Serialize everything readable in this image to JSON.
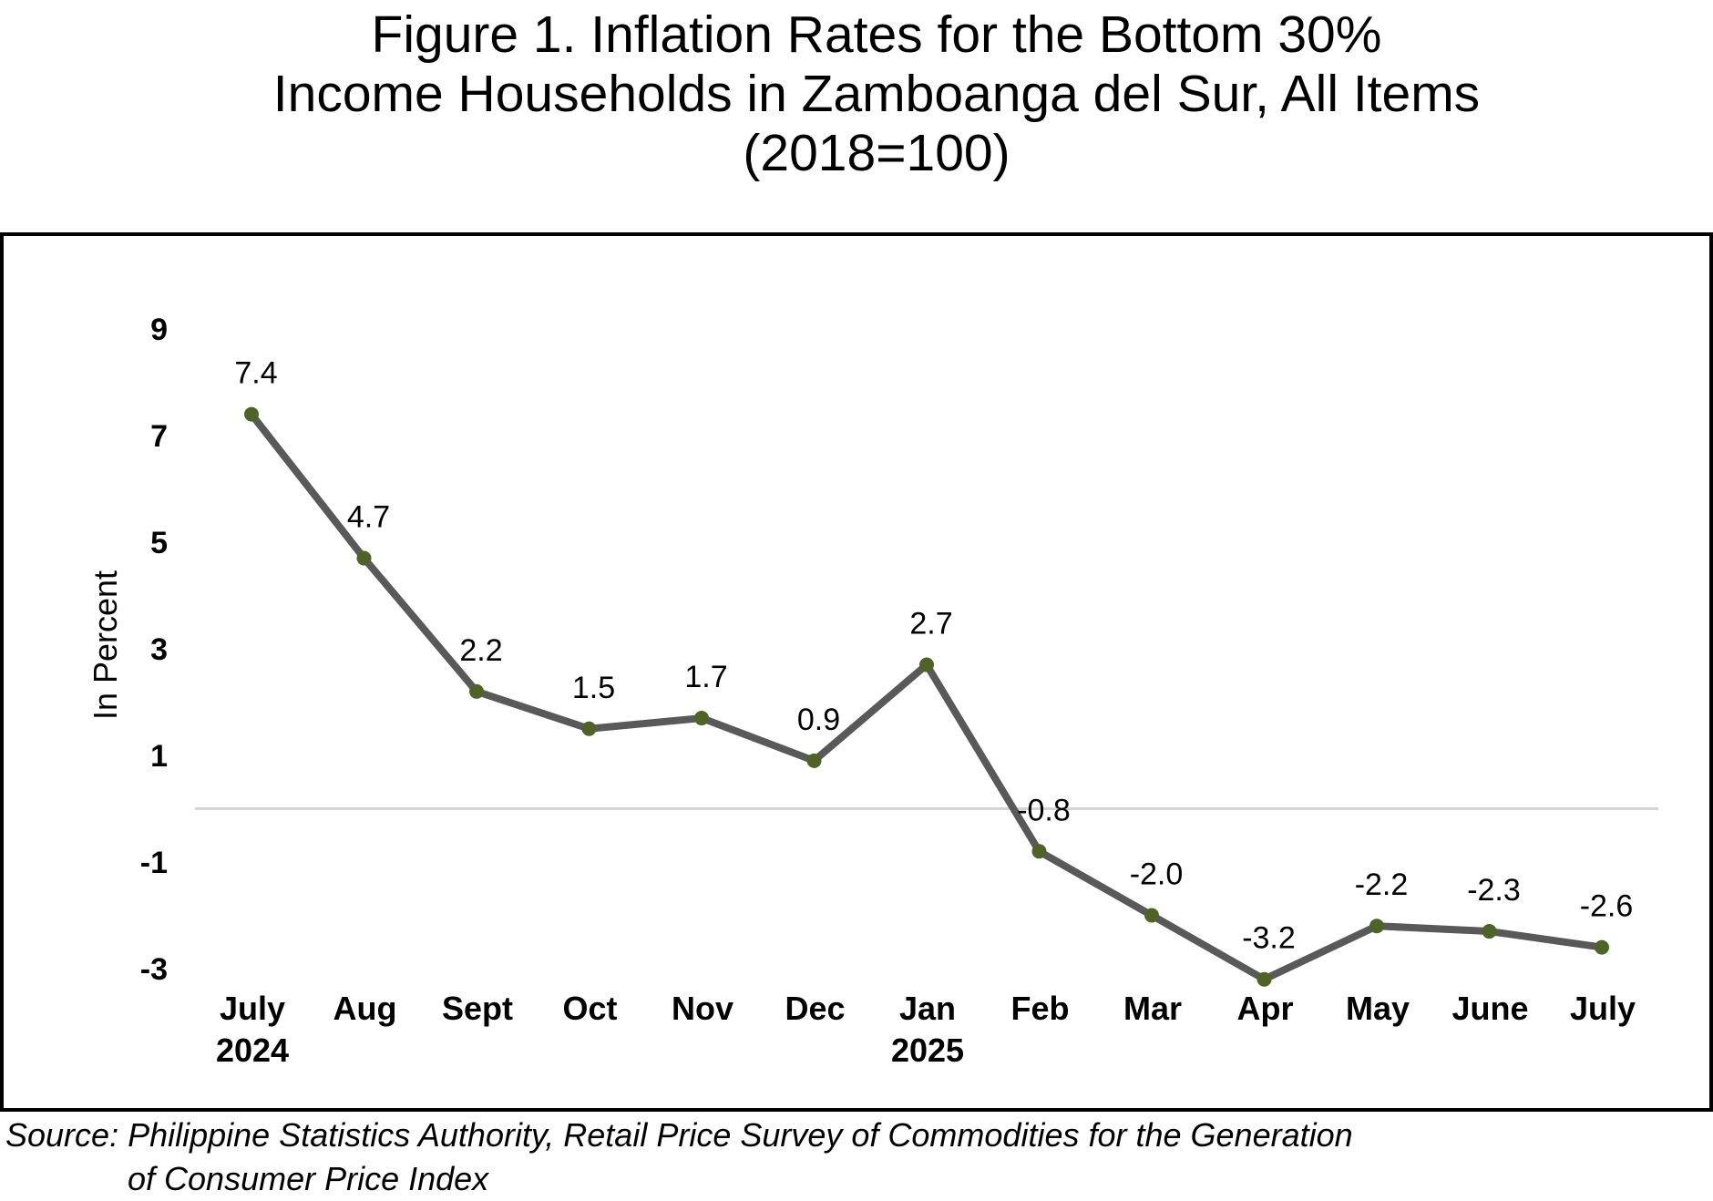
{
  "title": {
    "line1": "Figure 1. Inflation Rates for the Bottom 30%",
    "line2": "Income Households in Zamboanga del Sur, All Items",
    "line3": "(2018=100)"
  },
  "source": {
    "line1": "Source: Philippine Statistics Authority, Retail Price Survey of Commodities for the Generation",
    "line2": "of Consumer Price Index"
  },
  "chart_data": {
    "type": "line",
    "title": "Figure 1. Inflation Rates for the Bottom 30% Income Households in Zamboanga del Sur, All Items (2018=100)",
    "ylabel": "In Percent",
    "xlabel": "",
    "categories": [
      [
        "July",
        "2024"
      ],
      [
        "Aug"
      ],
      [
        "Sept"
      ],
      [
        "Oct"
      ],
      [
        "Nov"
      ],
      [
        "Dec"
      ],
      [
        "Jan",
        "2025"
      ],
      [
        "Feb"
      ],
      [
        "Mar"
      ],
      [
        "Apr"
      ],
      [
        "May"
      ],
      [
        "June"
      ],
      [
        "July"
      ]
    ],
    "values": [
      7.4,
      4.7,
      2.2,
      1.5,
      1.7,
      0.9,
      2.7,
      -0.8,
      -2.0,
      -3.2,
      -2.2,
      -2.3,
      -2.6
    ],
    "data_labels": [
      "7.4",
      "4.7",
      "2.2",
      "1.5",
      "1.7",
      "0.9",
      "2.7",
      "-0.8",
      "-2.0",
      "-3.2",
      "-2.2",
      "-2.3",
      "-2.6"
    ],
    "y_ticks": [
      9,
      7,
      5,
      3,
      1,
      -1,
      -3
    ],
    "ylim": [
      -3,
      9
    ],
    "zero_line": true,
    "grid": false,
    "line_color": "#595959",
    "marker_color": "#4f6228"
  }
}
